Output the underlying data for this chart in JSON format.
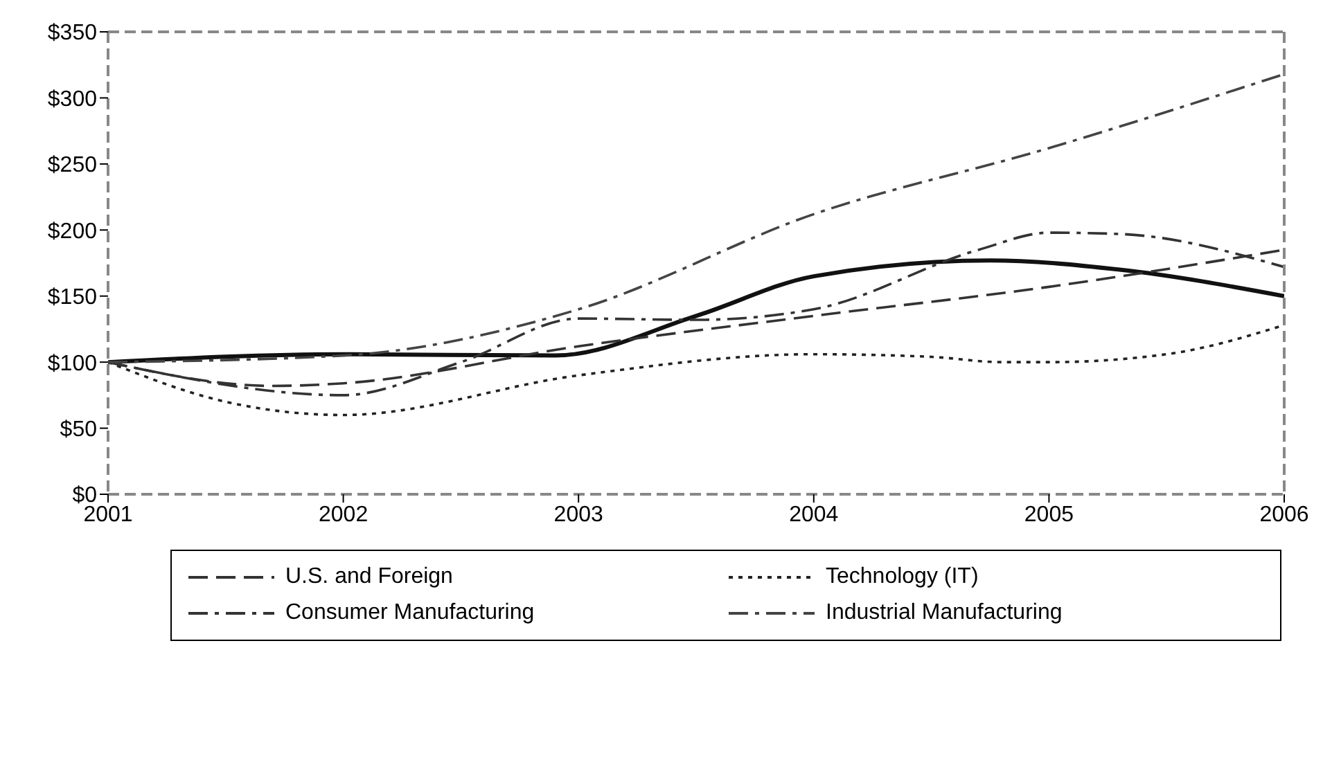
{
  "chart_data": {
    "type": "line",
    "xlim": [
      2001,
      2006
    ],
    "xticks": [
      2001,
      2002,
      2003,
      2004,
      2005,
      2006
    ],
    "ylim": [
      0,
      350
    ],
    "yticks": [
      {
        "value": 0,
        "label": "$0"
      },
      {
        "value": 50,
        "label": "$50"
      },
      {
        "value": 100,
        "label": "$100"
      },
      {
        "value": 150,
        "label": "$150"
      },
      {
        "value": 200,
        "label": "$200"
      },
      {
        "value": 250,
        "label": "$250"
      },
      {
        "value": 300,
        "label": "$300"
      },
      {
        "value": 350,
        "label": "$350"
      }
    ],
    "legend": "bottom",
    "marker": "none",
    "series": [
      {
        "color": "#111111",
        "line_style": "solid",
        "x": [
          2001,
          2002,
          2002.9,
          2003.5,
          2004,
          2004.75,
          2005.3,
          2006
        ],
        "values": [
          100,
          106,
          105,
          135,
          165,
          177,
          170,
          150
        ]
      },
      {
        "name": "U.S. and Foreign",
        "color": "#333333",
        "line_style": "dashed",
        "x": [
          2001,
          2001.7,
          2002,
          2003,
          2004,
          2005,
          2006
        ],
        "values": [
          100,
          82,
          84,
          112,
          135,
          157,
          185
        ]
      },
      {
        "name": "Technology (IT)",
        "color": "#222222",
        "line_style": "dotted",
        "x": [
          2001,
          2001.5,
          2002,
          2003,
          2004,
          2004.5,
          2004.8,
          2005,
          2005.5,
          2006
        ],
        "values": [
          100,
          70,
          60,
          90,
          106,
          104,
          100,
          100,
          106,
          128
        ]
      },
      {
        "name": "Consumer Manufacturing",
        "color": "#333333",
        "line_style": "dashdot",
        "x": [
          2001,
          2002,
          2002.5,
          2003,
          2003.5,
          2004,
          2004.7,
          2005,
          2005.3,
          2006
        ],
        "values": [
          100,
          75,
          100,
          133,
          132,
          140,
          185,
          198,
          197,
          172
        ]
      },
      {
        "name": "Industrial Manufacturing",
        "color": "#444444",
        "line_style": "dashdot",
        "x": [
          2001,
          2002,
          2003,
          2004,
          2005,
          2006
        ],
        "values": [
          100,
          105,
          140,
          212,
          262,
          318
        ]
      }
    ]
  }
}
